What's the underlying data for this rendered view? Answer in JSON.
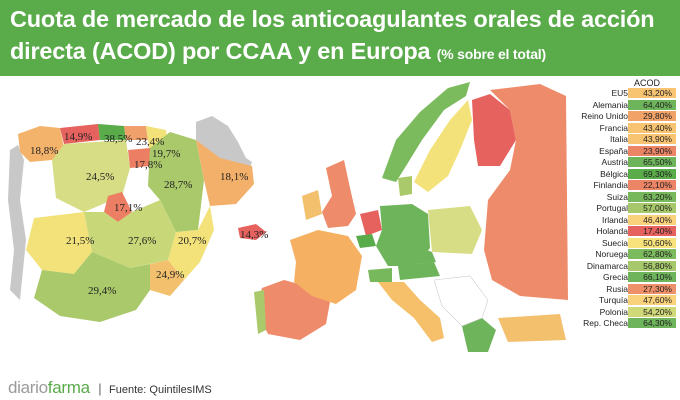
{
  "title": {
    "main": "Cuota de mercado de los anticoagulantes orales de acción directa (ACOD) por CCAA y en Europa",
    "suffix": "(% sobre el total)"
  },
  "colors": {
    "header": "#5aab4a",
    "dark_green": "#5aab4a",
    "light_green": "#a9c96a",
    "yellow_green": "#d7dd84",
    "yellow": "#f3e27a",
    "orange": "#f6b061",
    "salmon": "#ee8b6a",
    "red": "#e6625f",
    "no_data": "#c8c8c8"
  },
  "spain_regions": [
    {
      "name": "Galicia",
      "value": "18,8%"
    },
    {
      "name": "Asturias",
      "value": "14,9%"
    },
    {
      "name": "Cantabria",
      "value": "38,5%"
    },
    {
      "name": "País Vasco",
      "value": "23,4%"
    },
    {
      "name": "Navarra",
      "value": "19,7%"
    },
    {
      "name": "La Rioja",
      "value": "17,8%"
    },
    {
      "name": "Castilla y León",
      "value": "24,5%"
    },
    {
      "name": "Aragón",
      "value": "28,7%"
    },
    {
      "name": "Cataluña",
      "value": "18,1%"
    },
    {
      "name": "Madrid",
      "value": "17,1%"
    },
    {
      "name": "Extremadura",
      "value": "21,5%"
    },
    {
      "name": "Castilla-La Mancha",
      "value": "27,6%"
    },
    {
      "name": "Comunidad Valenciana",
      "value": "20,7%"
    },
    {
      "name": "Baleares",
      "value": "14,3%"
    },
    {
      "name": "Murcia",
      "value": "24,9%"
    },
    {
      "name": "Andalucía",
      "value": "29,4%"
    }
  ],
  "legend": {
    "header": "ACOD",
    "rows": [
      {
        "country": "EU5",
        "value": "43,20%",
        "color": "#f8c472"
      },
      {
        "country": "Alemania",
        "value": "64,40%",
        "color": "#6db45b"
      },
      {
        "country": "Reino Unido",
        "value": "29,80%",
        "color": "#f1a267"
      },
      {
        "country": "Francia",
        "value": "43,40%",
        "color": "#f8c472"
      },
      {
        "country": "Italia",
        "value": "43,90%",
        "color": "#f8c472"
      },
      {
        "country": "España",
        "value": "23,90%",
        "color": "#ec8466"
      },
      {
        "country": "Austria",
        "value": "65,50%",
        "color": "#6db45b"
      },
      {
        "country": "Bélgica",
        "value": "69,30%",
        "color": "#5aab4a"
      },
      {
        "country": "Finlandia",
        "value": "22,10%",
        "color": "#ec8466"
      },
      {
        "country": "Suiza",
        "value": "63,20%",
        "color": "#78b85c"
      },
      {
        "country": "Portugal",
        "value": "57,00%",
        "color": "#a6c86a"
      },
      {
        "country": "Irlanda",
        "value": "46,40%",
        "color": "#fad27b"
      },
      {
        "country": "Holanda",
        "value": "17,40%",
        "color": "#e6625f"
      },
      {
        "country": "Suecia",
        "value": "50,60%",
        "color": "#f7e27c"
      },
      {
        "country": "Noruega",
        "value": "62,80%",
        "color": "#7cba5e"
      },
      {
        "country": "Dinamarca",
        "value": "56,80%",
        "color": "#a6c86a"
      },
      {
        "country": "Grecia",
        "value": "66,10%",
        "color": "#6db45b"
      },
      {
        "country": "Rusia",
        "value": "27,30%",
        "color": "#ee9069"
      },
      {
        "country": "Turquía",
        "value": "47,60%",
        "color": "#fad27b"
      },
      {
        "country": "Polonia",
        "value": "54,20%",
        "color": "#cfd977"
      },
      {
        "country": "Rep. Checa",
        "value": "64,30%",
        "color": "#6db45b"
      }
    ]
  },
  "footer": {
    "brand_part1": "diario",
    "brand_part2": "farma",
    "separator": "|",
    "source": "Fuente: QuintilesIMS"
  }
}
